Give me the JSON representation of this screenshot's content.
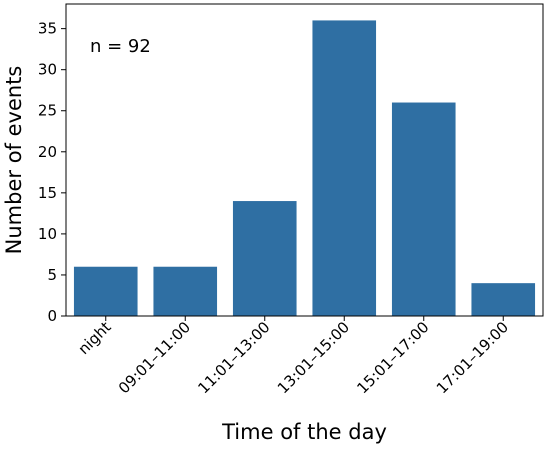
{
  "chart_data": {
    "type": "bar",
    "categories": [
      "night",
      "09:01–11:00",
      "11:01–13:00",
      "13:01–15:00",
      "15:01–17:00",
      "17:01–19:00"
    ],
    "values": [
      6,
      6,
      14,
      36,
      26,
      4
    ],
    "title": "",
    "xlabel": "Time of the day",
    "ylabel": "Number of events",
    "ylim": [
      0,
      38
    ],
    "yticks": [
      0,
      5,
      10,
      15,
      20,
      25,
      30,
      35
    ],
    "annotation": "n = 92",
    "bar_color": "#2f6fa3",
    "grid": false,
    "legend": "none",
    "xtick_rotation": 45
  }
}
